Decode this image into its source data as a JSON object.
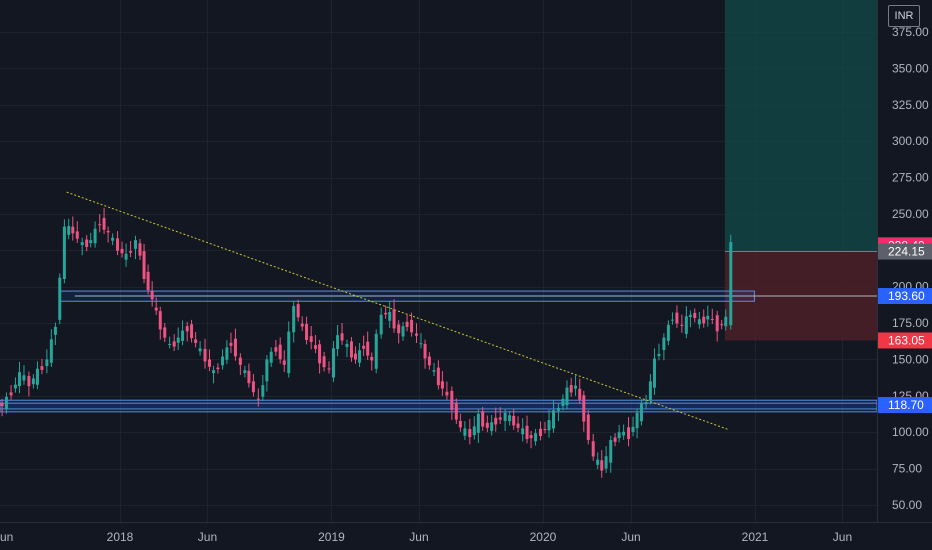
{
  "currency": "INR",
  "colors": {
    "background": "#131722",
    "grid": "#1e222d",
    "up": "#26a69a",
    "down": "#ef5381",
    "zone_border": "#5b8ee6",
    "trendline": "#c8c832",
    "target_zone": "#134b4a",
    "stop_zone": "#4a1f28"
  },
  "chart_data": {
    "type": "candlestick",
    "y_axis": {
      "ticks": [
        "50.00",
        "75.00",
        "100.00",
        "125.00",
        "150.00",
        "175.00",
        "200.00",
        "225.00",
        "250.00",
        "275.00",
        "300.00",
        "325.00",
        "350.00",
        "375.00"
      ],
      "ylim": [
        40,
        390
      ],
      "side": "right"
    },
    "x_axis": {
      "labels": [
        {
          "text": "Jun",
          "date": "2017-06-01"
        },
        {
          "text": "2018",
          "date": "2018-01-01"
        },
        {
          "text": "Jun",
          "date": "2018-06-01"
        },
        {
          "text": "2019",
          "date": "2019-01-01"
        },
        {
          "text": "Jun",
          "date": "2019-06-01"
        },
        {
          "text": "2020",
          "date": "2020-01-01"
        },
        {
          "text": "Jun",
          "date": "2020-06-01"
        },
        {
          "text": "2021",
          "date": "2021-01-01"
        },
        {
          "text": "Jun",
          "date": "2021-06-01"
        }
      ]
    },
    "price_tags": [
      {
        "label": "228.40",
        "value": 228.4,
        "color": "#ef2d6b"
      },
      {
        "label": "224.15",
        "value": 224.15,
        "color": "#5d606b"
      },
      {
        "label": "193.60",
        "value": 193.6,
        "color": "#2962ff"
      },
      {
        "label": "163.05",
        "value": 163.05,
        "color": "#f23645"
      },
      {
        "label": "118.70",
        "value": 118.7,
        "color": "#2962ff"
      }
    ],
    "horizontal_zones": [
      {
        "top": 197,
        "bottom": 190,
        "from": "2017-09-20",
        "to": "2020-12-31"
      },
      {
        "top": 122,
        "bottom": 116,
        "from": "2017-05-01",
        "to": "2021-09-30"
      },
      {
        "top": 120,
        "bottom": 114,
        "from": "2017-05-01",
        "to": "2021-09-30"
      }
    ],
    "trendline": {
      "from": {
        "date": "2017-10-01",
        "value": 265
      },
      "to": {
        "date": "2020-11-15",
        "value": 102
      }
    },
    "position": {
      "from": "2020-11-10",
      "to": "2021-09-30",
      "entry": 224.15,
      "target": 400,
      "stop": 163.05
    },
    "series": [
      {
        "t": "2017-05-01",
        "c": 131
      },
      {
        "t": "2017-05-15",
        "c": 122
      },
      {
        "t": "2017-06-01",
        "c": 118
      },
      {
        "t": "2017-06-15",
        "c": 128
      },
      {
        "t": "2017-07-01",
        "c": 140
      },
      {
        "t": "2017-07-15",
        "c": 133
      },
      {
        "t": "2017-08-01",
        "c": 141
      },
      {
        "t": "2017-08-15",
        "c": 150
      },
      {
        "t": "2017-09-01",
        "c": 175
      },
      {
        "t": "2017-09-15",
        "c": 240
      },
      {
        "t": "2017-10-01",
        "c": 238
      },
      {
        "t": "2017-10-15",
        "c": 228
      },
      {
        "t": "2017-11-01",
        "c": 232
      },
      {
        "t": "2017-11-15",
        "c": 245
      },
      {
        "t": "2017-12-01",
        "c": 236
      },
      {
        "t": "2017-12-15",
        "c": 226
      },
      {
        "t": "2018-01-01",
        "c": 220
      },
      {
        "t": "2018-01-15",
        "c": 232
      },
      {
        "t": "2018-02-01",
        "c": 208
      },
      {
        "t": "2018-02-15",
        "c": 190
      },
      {
        "t": "2018-03-01",
        "c": 172
      },
      {
        "t": "2018-03-15",
        "c": 158
      },
      {
        "t": "2018-04-01",
        "c": 165
      },
      {
        "t": "2018-04-15",
        "c": 172
      },
      {
        "t": "2018-05-01",
        "c": 160
      },
      {
        "t": "2018-05-15",
        "c": 150
      },
      {
        "t": "2018-06-01",
        "c": 140
      },
      {
        "t": "2018-06-15",
        "c": 152
      },
      {
        "t": "2018-07-01",
        "c": 162
      },
      {
        "t": "2018-07-15",
        "c": 145
      },
      {
        "t": "2018-08-01",
        "c": 135
      },
      {
        "t": "2018-08-15",
        "c": 120
      },
      {
        "t": "2018-09-01",
        "c": 150
      },
      {
        "t": "2018-09-15",
        "c": 158
      },
      {
        "t": "2018-10-01",
        "c": 145
      },
      {
        "t": "2018-10-15",
        "c": 188
      },
      {
        "t": "2018-11-01",
        "c": 170
      },
      {
        "t": "2018-11-15",
        "c": 162
      },
      {
        "t": "2018-12-01",
        "c": 150
      },
      {
        "t": "2018-12-15",
        "c": 142
      },
      {
        "t": "2019-01-01",
        "c": 168
      },
      {
        "t": "2019-01-15",
        "c": 158
      },
      {
        "t": "2019-02-01",
        "c": 150
      },
      {
        "t": "2019-02-15",
        "c": 160
      },
      {
        "t": "2019-03-01",
        "c": 148
      },
      {
        "t": "2019-03-15",
        "c": 182
      },
      {
        "t": "2019-04-01",
        "c": 180
      },
      {
        "t": "2019-04-15",
        "c": 168
      },
      {
        "t": "2019-05-01",
        "c": 175
      },
      {
        "t": "2019-05-15",
        "c": 165
      },
      {
        "t": "2019-06-01",
        "c": 152
      },
      {
        "t": "2019-06-15",
        "c": 140
      },
      {
        "t": "2019-07-01",
        "c": 130
      },
      {
        "t": "2019-07-15",
        "c": 118
      },
      {
        "t": "2019-08-01",
        "c": 102
      },
      {
        "t": "2019-08-15",
        "c": 98
      },
      {
        "t": "2019-09-01",
        "c": 110
      },
      {
        "t": "2019-09-15",
        "c": 103
      },
      {
        "t": "2019-10-01",
        "c": 108
      },
      {
        "t": "2019-10-15",
        "c": 112
      },
      {
        "t": "2019-11-01",
        "c": 106
      },
      {
        "t": "2019-11-15",
        "c": 100
      },
      {
        "t": "2019-12-01",
        "c": 96
      },
      {
        "t": "2019-12-15",
        "c": 100
      },
      {
        "t": "2020-01-01",
        "c": 107
      },
      {
        "t": "2020-01-15",
        "c": 118
      },
      {
        "t": "2020-02-01",
        "c": 128
      },
      {
        "t": "2020-02-15",
        "c": 132
      },
      {
        "t": "2020-03-01",
        "c": 110
      },
      {
        "t": "2020-03-15",
        "c": 82
      },
      {
        "t": "2020-04-01",
        "c": 75
      },
      {
        "t": "2020-04-15",
        "c": 92
      },
      {
        "t": "2020-05-01",
        "c": 100
      },
      {
        "t": "2020-05-15",
        "c": 98
      },
      {
        "t": "2020-06-01",
        "c": 112
      },
      {
        "t": "2020-06-15",
        "c": 122
      },
      {
        "t": "2020-07-01",
        "c": 148
      },
      {
        "t": "2020-07-15",
        "c": 165
      },
      {
        "t": "2020-08-01",
        "c": 180
      },
      {
        "t": "2020-08-15",
        "c": 172
      },
      {
        "t": "2020-09-01",
        "c": 182
      },
      {
        "t": "2020-09-15",
        "c": 175
      },
      {
        "t": "2020-10-01",
        "c": 180
      },
      {
        "t": "2020-10-15",
        "c": 172
      },
      {
        "t": "2020-11-01",
        "c": 178
      },
      {
        "t": "2020-11-15",
        "c": 228
      }
    ]
  }
}
